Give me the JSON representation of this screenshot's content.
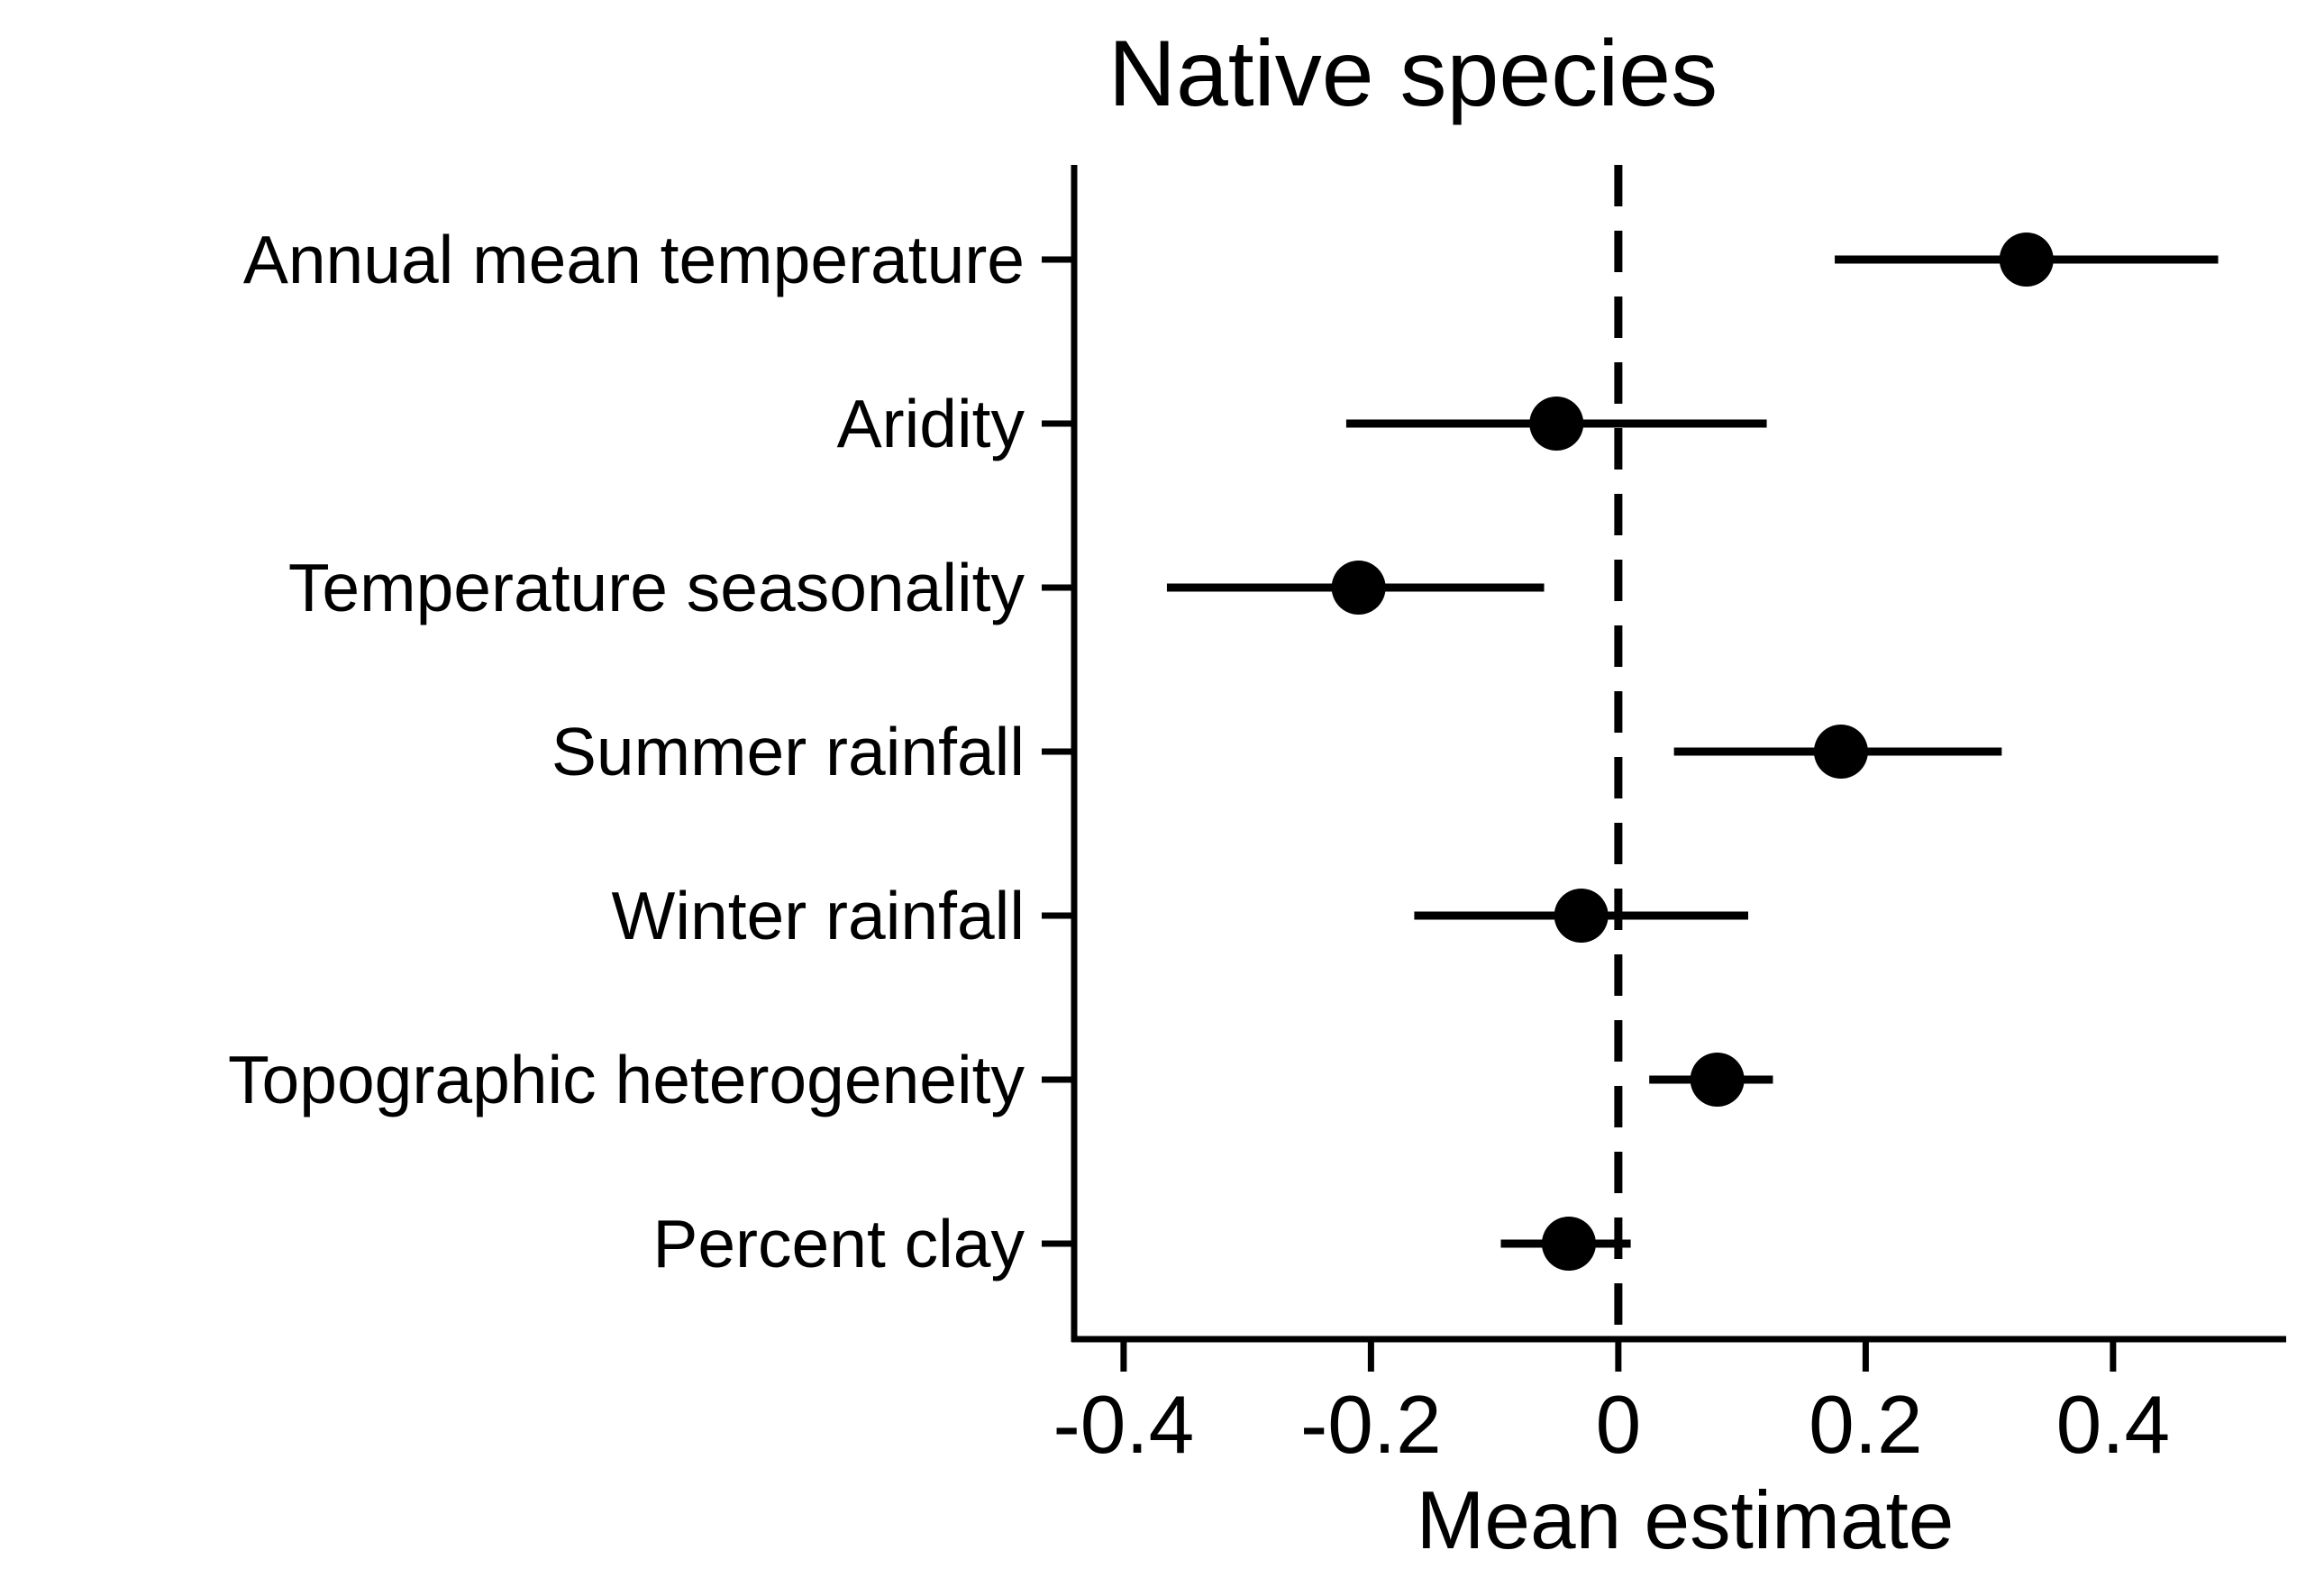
{
  "chart_data": {
    "type": "scatter",
    "title": "Native species",
    "xlabel": "Mean estimate",
    "ylabel": "",
    "xlim": [
      -0.44,
      0.54
    ],
    "xticks": [
      {
        "value": -0.4,
        "label": "-0.4"
      },
      {
        "value": -0.2,
        "label": "-0.2"
      },
      {
        "value": 0,
        "label": "0"
      },
      {
        "value": 0.2,
        "label": "0.2"
      },
      {
        "value": 0.4,
        "label": "0.4"
      }
    ],
    "reference_line": {
      "x": 0,
      "style": "dashed"
    },
    "categories": [
      "Annual mean temperature",
      "Aridity",
      "Temperature seasonality",
      "Summer rainfall",
      "Winter rainfall",
      "Topographic heterogeneity",
      "Percent clay"
    ],
    "series": [
      {
        "estimates": [
          0.33,
          -0.05,
          -0.21,
          0.18,
          -0.03,
          0.08,
          -0.04
        ],
        "lower": [
          0.175,
          -0.22,
          -0.365,
          0.045,
          -0.165,
          0.025,
          -0.095
        ],
        "upper": [
          0.485,
          0.12,
          -0.06,
          0.31,
          0.105,
          0.125,
          0.01
        ]
      }
    ],
    "grid": false,
    "legend": "none",
    "colors": {
      "marks": "#000000",
      "background": "#ffffff"
    }
  }
}
